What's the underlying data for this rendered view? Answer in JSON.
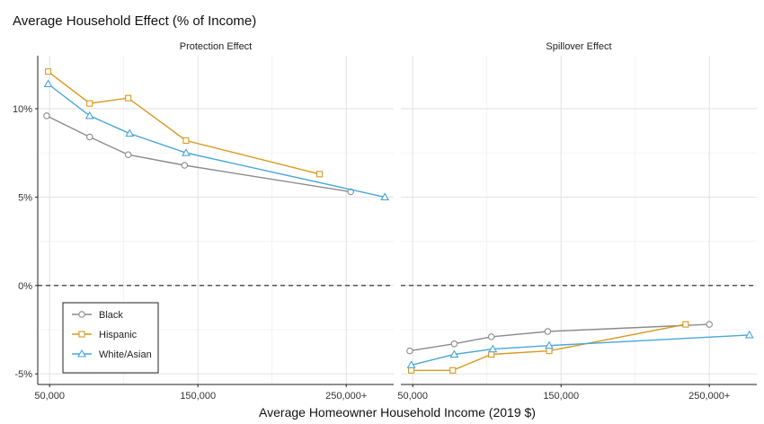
{
  "chart_data": {
    "type": "line",
    "title": "Average Household Effect (% of Income)",
    "xlabel": "Average Homeowner Household Income (2019 $)",
    "ylabel": "",
    "ylim": [
      -5.6,
      13.0
    ],
    "yticks": [
      -5,
      0,
      5,
      10
    ],
    "ytick_labels": [
      "-5%",
      "0%",
      "5%",
      "10%"
    ],
    "xlim": [
      42000,
      282000
    ],
    "xticks": [
      50000,
      150000,
      250000
    ],
    "xtick_labels": [
      "50,000",
      "150,000",
      "250,000+"
    ],
    "grid": true,
    "reference_line": 0,
    "legend_position": "bottom-left",
    "colors": {
      "Black": "#8c8c8c",
      "Hispanic": "#d89a1e",
      "White/Asian": "#4aa6d8"
    },
    "markers": {
      "Black": "circle",
      "Hispanic": "square",
      "White/Asian": "triangle"
    },
    "legend": [
      "Black",
      "Hispanic",
      "White/Asian"
    ],
    "panels": [
      {
        "title": "Protection Effect",
        "series": [
          {
            "name": "Black",
            "x": [
              48000,
              77000,
              103000,
              141000,
              253000
            ],
            "y": [
              9.6,
              8.4,
              7.4,
              6.8,
              5.3
            ]
          },
          {
            "name": "Hispanic",
            "x": [
              49000,
              77000,
              103000,
              142000,
              232000
            ],
            "y": [
              12.1,
              10.3,
              10.6,
              8.2,
              6.3
            ]
          },
          {
            "name": "White/Asian",
            "x": [
              49000,
              77000,
              104000,
              142000,
              276000
            ],
            "y": [
              11.4,
              9.6,
              8.6,
              7.5,
              5.0
            ]
          }
        ]
      },
      {
        "title": "Spillover Effect",
        "series": [
          {
            "name": "Black",
            "x": [
              48000,
              78000,
              103000,
              141000,
              250000
            ],
            "y": [
              -3.7,
              -3.3,
              -2.9,
              -2.6,
              -2.2
            ]
          },
          {
            "name": "Hispanic",
            "x": [
              49000,
              77000,
              103000,
              142000,
              234000
            ],
            "y": [
              -4.8,
              -4.8,
              -3.9,
              -3.7,
              -2.2
            ]
          },
          {
            "name": "White/Asian",
            "x": [
              49000,
              78000,
              104000,
              142000,
              277000
            ],
            "y": [
              -4.5,
              -3.9,
              -3.6,
              -3.4,
              -2.8
            ]
          }
        ]
      }
    ]
  }
}
